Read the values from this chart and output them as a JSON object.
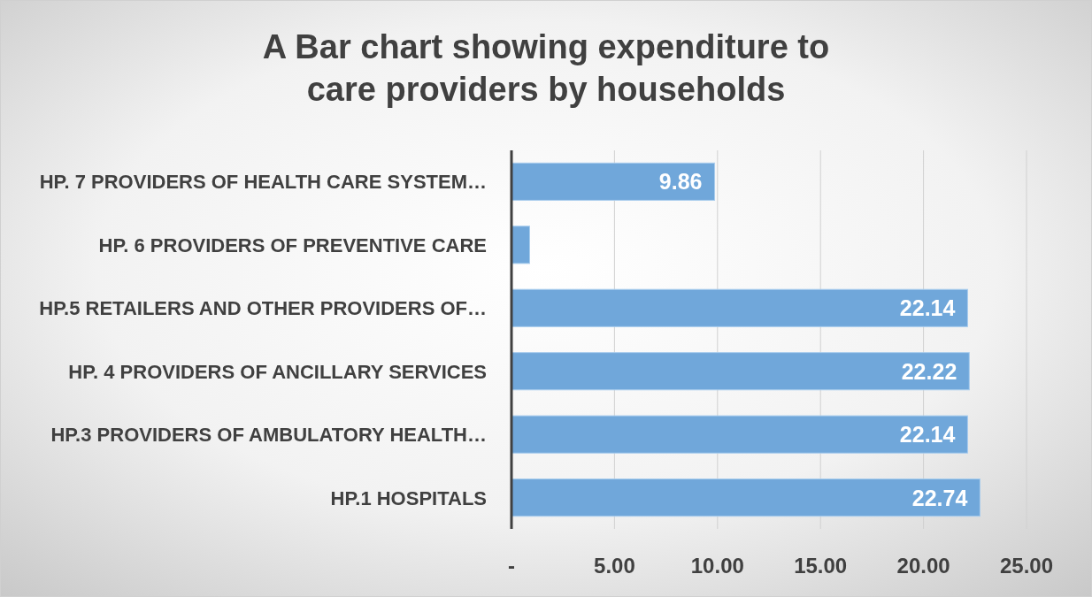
{
  "chart_data": {
    "type": "bar",
    "orientation": "horizontal",
    "title": "A Bar chart showing expenditure to care providers by households",
    "categories": [
      "HP. 7 PROVIDERS OF HEALTH CARE SYSTEM…",
      "HP. 6 PROVIDERS OF PREVENTIVE CARE",
      "HP.5 RETAILERS AND OTHER PROVIDERS OF…",
      "HP. 4 PROVIDERS OF ANCILLARY SERVICES",
      "HP.3 PROVIDERS OF AMBULATORY HEALTH…",
      "HP.1 HOSPITALS"
    ],
    "values": [
      9.86,
      0.88,
      22.14,
      22.22,
      22.14,
      22.74
    ],
    "value_labels": [
      "9.86",
      null,
      "22.14",
      "22.22",
      "22.14",
      "22.74"
    ],
    "color": "#70a7da",
    "xlim": [
      0,
      25
    ],
    "xticks": [
      {
        "value": 0,
        "label": "-"
      },
      {
        "value": 5,
        "label": "5.00"
      },
      {
        "value": 10,
        "label": "10.00"
      },
      {
        "value": 15,
        "label": "15.00"
      },
      {
        "value": 20,
        "label": "20.00"
      },
      {
        "value": 25,
        "label": "25.00"
      }
    ],
    "grid": "x"
  }
}
